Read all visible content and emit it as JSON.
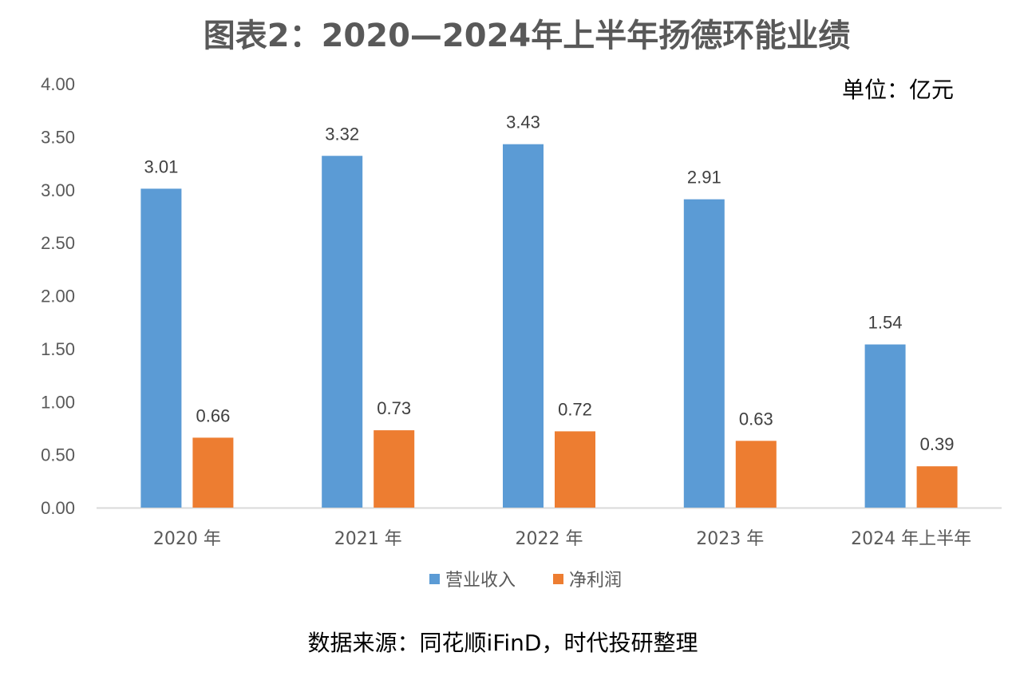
{
  "chart_data": {
    "type": "bar",
    "title": "图表2：2020—2024年上半年扬德环能业绩",
    "unit_label": "单位：亿元",
    "source": "数据来源：同花顺iFinD，时代投研整理",
    "categories": [
      "2020 年",
      "2021 年",
      "2022 年",
      "2023 年",
      "2024 年上半年"
    ],
    "series": [
      {
        "name": "营业收入",
        "color": "#5B9BD5",
        "values": [
          3.01,
          3.32,
          3.43,
          2.91,
          1.54
        ],
        "labels": [
          "3.01",
          "3.32",
          "3.43",
          "2.91",
          "1.54"
        ]
      },
      {
        "name": "净利润",
        "color": "#ED7D31",
        "values": [
          0.66,
          0.73,
          0.72,
          0.63,
          0.39
        ],
        "labels": [
          "0.66",
          "0.73",
          "0.72",
          "0.63",
          "0.39"
        ]
      }
    ],
    "yticks": [
      "0.00",
      "0.50",
      "1.00",
      "1.50",
      "2.00",
      "2.50",
      "3.00",
      "3.50",
      "4.00"
    ],
    "ylim": [
      0,
      4
    ],
    "xlabel": "",
    "ylabel": "",
    "grid": false,
    "legend_position": "bottom"
  }
}
